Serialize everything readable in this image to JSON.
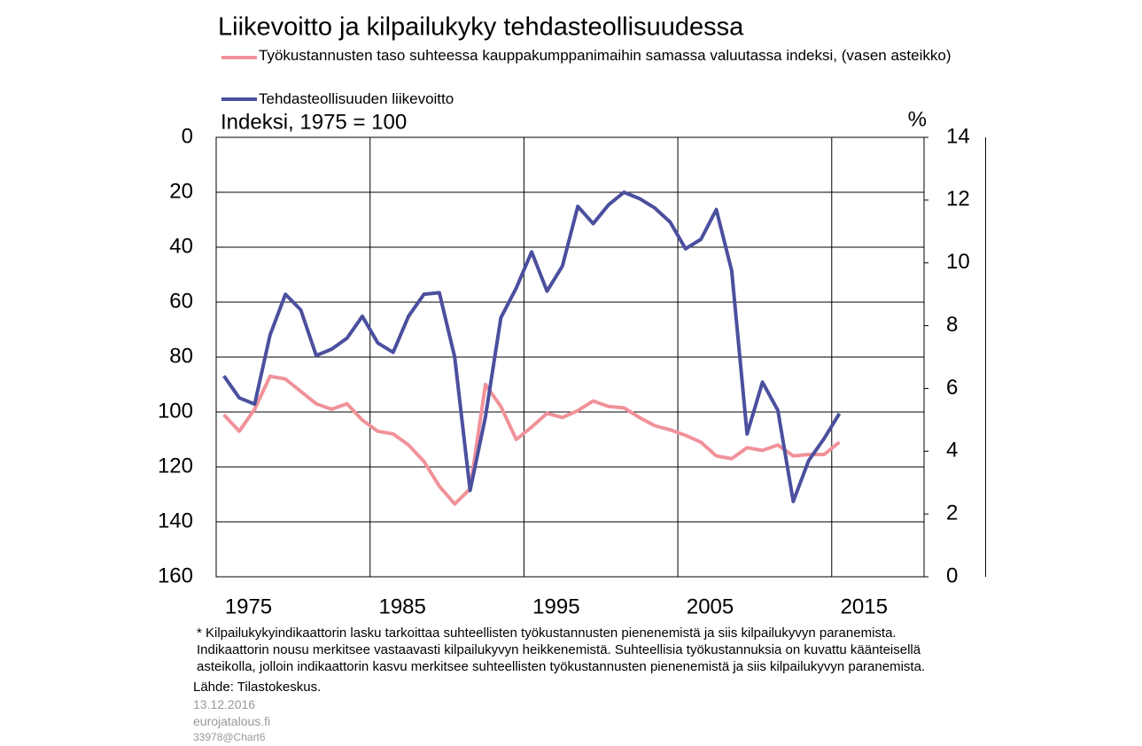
{
  "chart_data": {
    "type": "line",
    "title": "Liikevoitto ja kilpailukyky tehdasteollisuudessa",
    "y_label": "Indeksi, 1975 = 100",
    "y2_label": "%",
    "x": [
      1975,
      1976,
      1977,
      1978,
      1979,
      1980,
      1981,
      1982,
      1983,
      1984,
      1985,
      1986,
      1987,
      1988,
      1989,
      1990,
      1991,
      1992,
      1993,
      1994,
      1995,
      1996,
      1997,
      1998,
      1999,
      2000,
      2001,
      2002,
      2003,
      2004,
      2005,
      2006,
      2007,
      2008,
      2009,
      2010,
      2011,
      2012,
      2013,
      2014,
      2015
    ],
    "series": [
      {
        "name": "Työkustannusten taso suhteessa kauppakumppanimaihin samassa valuutassa indeksi, (vasen asteikko)",
        "color": "#f0929a",
        "values": [
          101,
          107,
          99,
          87,
          88,
          92.5,
          97,
          99,
          97,
          103,
          107,
          108,
          112,
          118,
          127,
          133.5,
          128,
          90,
          98,
          110,
          105.5,
          100.5,
          102,
          99.5,
          96,
          98,
          98.5,
          102,
          105,
          106.5,
          108.5,
          111,
          116,
          117,
          113,
          114,
          112,
          116,
          115.5,
          115.5,
          111
        ]
      },
      {
        "name": "Tehdasteollisuuden liikevoitto",
        "color": "#4b4f9e",
        "axis": "y2",
        "values": [
          6.4,
          5.7,
          5.5,
          7.7,
          9.0,
          8.5,
          7.05,
          7.25,
          7.6,
          8.3,
          7.45,
          7.15,
          8.3,
          9.0,
          9.05,
          7.0,
          2.75,
          5.1,
          8.25,
          9.2,
          10.35,
          9.1,
          9.9,
          11.8,
          11.25,
          11.85,
          12.25,
          12.05,
          11.75,
          11.3,
          10.45,
          10.75,
          11.7,
          9.75,
          4.55,
          6.2,
          5.3,
          2.4,
          3.7,
          4.4,
          5.2
        ]
      }
    ],
    "xlim": [
      1974.5,
      2020.5
    ],
    "xticks": [
      1975,
      1985,
      1995,
      2005,
      2015
    ],
    "ylim": [
      0,
      160
    ],
    "y_inverted": true,
    "yticks": [
      0,
      20,
      40,
      60,
      80,
      100,
      120,
      140,
      160
    ],
    "y2lim": [
      0,
      14
    ],
    "y2ticks": [
      0,
      2,
      4,
      6,
      8,
      10,
      12,
      14
    ],
    "grid": true,
    "footnote": [
      "* Kilpailukykyindikaattorin lasku tarkoittaa suhteellisten työkustannusten pienenemistä ja siis kilpailukyvyn paranemista.",
      "Indikaattorin nousu merkitsee vastaavasti kilpailukyvyn heikkenemistä. Suhteellisia työkustannuksia on kuvattu käänteisellä",
      "asteikolla, jolloin indikaattorin kasvu merkitsee suhteellisten työkustannusten pienenemistä ja siis kilpailukyvyn paranemista."
    ],
    "source": "Lähde: Tilastokeskus.",
    "date": "13.12.2016",
    "site": "eurojatalous.fi",
    "chart_id": "33978@Chart6"
  }
}
